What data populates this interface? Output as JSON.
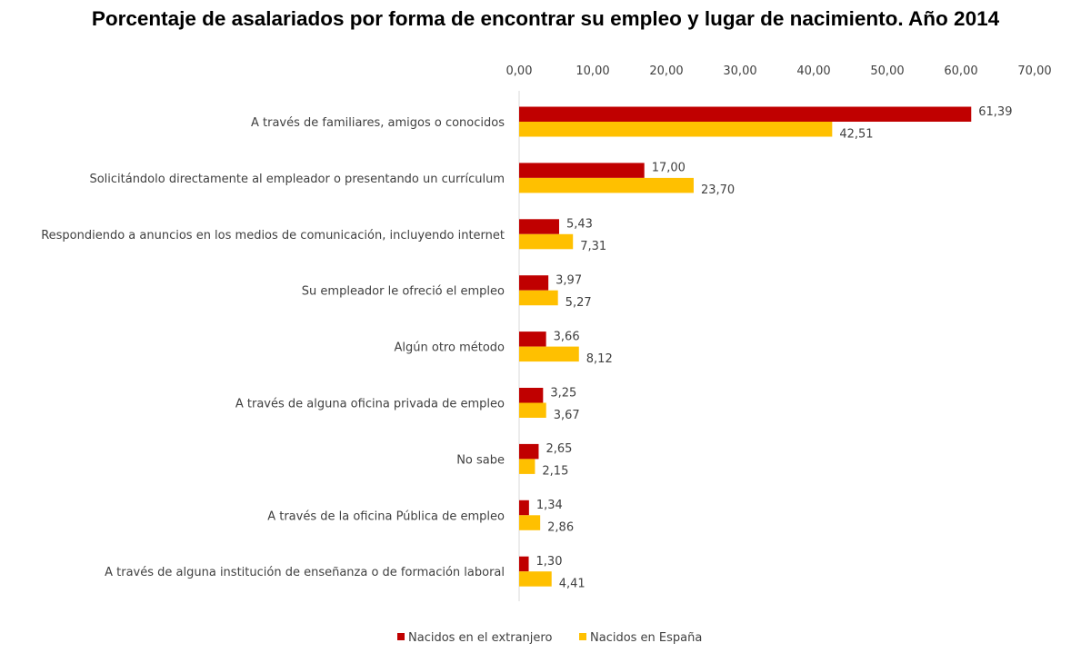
{
  "chart_data": {
    "type": "bar",
    "orientation": "horizontal",
    "title": "Porcentaje de asalariados por forma de encontrar su empleo y lugar de nacimiento. Año 2014",
    "categories": [
      "A través de familiares, amigos o conocidos",
      "Solicitándolo directamente al empleador o presentando un currículum",
      "Respondiendo a anuncios en los medios de comunicación, incluyendo internet",
      "Su empleador le ofreció el empleo",
      "Algún otro método",
      "A través de alguna oficina privada de empleo",
      "No sabe",
      "A través de la oficina Pública de empleo",
      "A través de alguna institución de enseñanza o de formación laboral"
    ],
    "series": [
      {
        "name": "Nacidos en el extranjero",
        "color": "#C00000",
        "values": [
          61.39,
          17.0,
          5.43,
          3.97,
          3.66,
          3.25,
          2.65,
          1.34,
          1.3
        ],
        "labels": [
          "61,39",
          "17,00",
          "5,43",
          "3,97",
          "3,66",
          "3,25",
          "2,65",
          "1,34",
          "1,30"
        ]
      },
      {
        "name": "Nacidos en España",
        "color": "#FFC000",
        "values": [
          42.51,
          23.7,
          7.31,
          5.27,
          8.12,
          3.67,
          2.15,
          2.86,
          4.41
        ],
        "labels": [
          "42,51",
          "23,70",
          "7,31",
          "5,27",
          "8,12",
          "3,67",
          "2,15",
          "2,86",
          "4,41"
        ]
      }
    ],
    "xlim": [
      0,
      70
    ],
    "xticks": [
      "0,00",
      "10,00",
      "20,00",
      "30,00",
      "40,00",
      "50,00",
      "60,00",
      "70,00"
    ],
    "axis_position": "top",
    "grid": false,
    "legend_position": "bottom"
  }
}
